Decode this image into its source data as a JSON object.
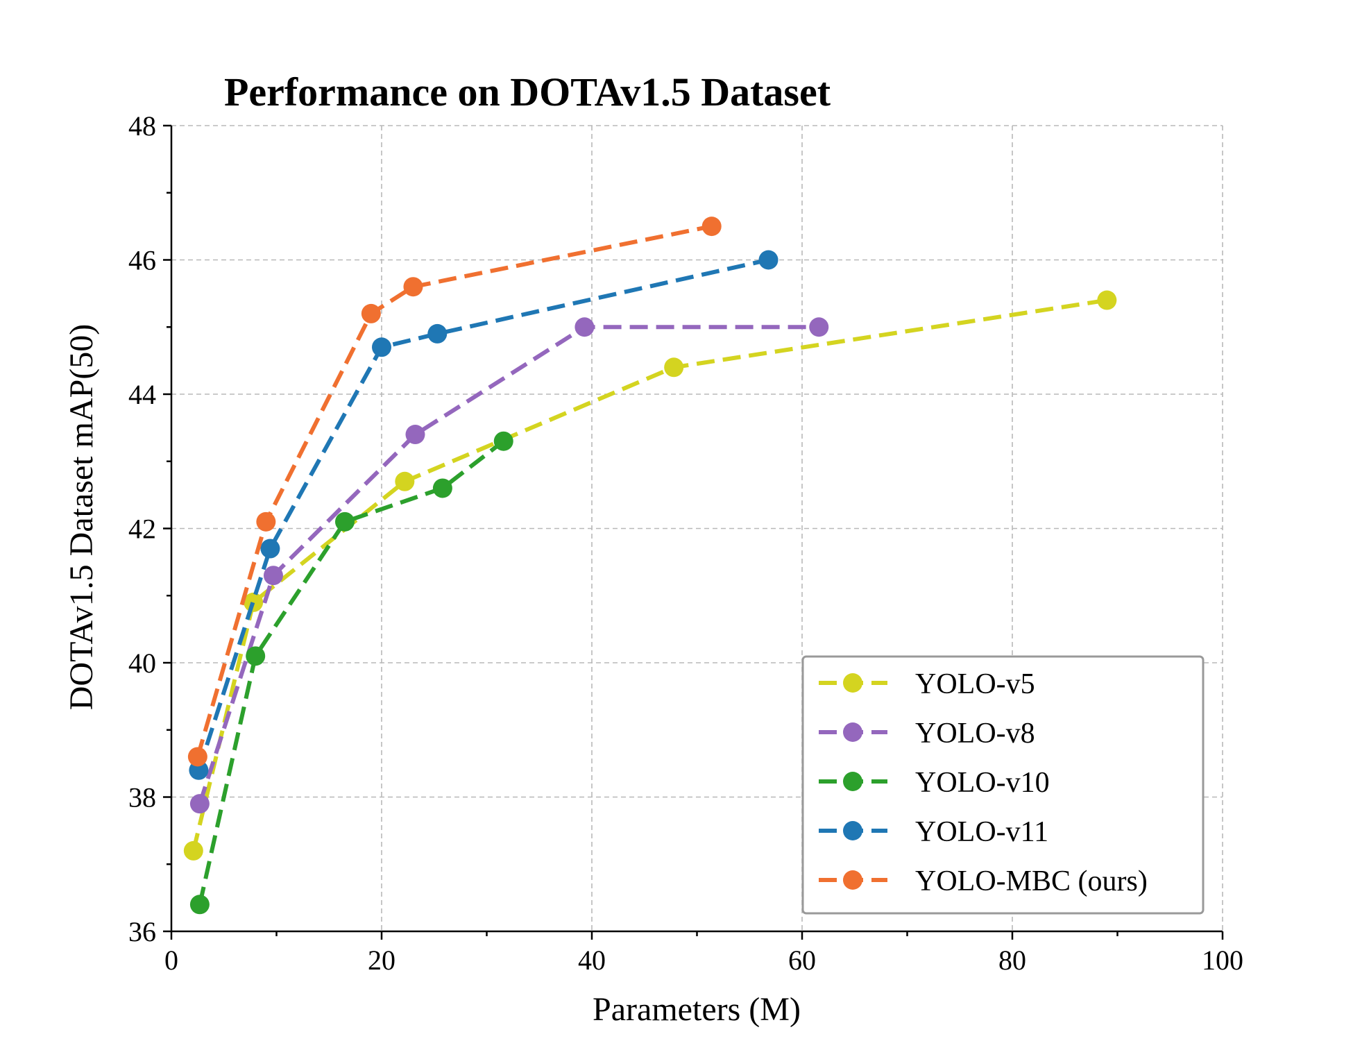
{
  "chart_data": {
    "type": "line",
    "title": "Performance on DOTAv1.5 Dataset",
    "xlabel": "Parameters (M)",
    "ylabel": "DOTAv1.5 Dataset mAP(50)",
    "xlim": [
      0,
      100
    ],
    "ylim": [
      36,
      48
    ],
    "xticks": [
      0,
      20,
      40,
      60,
      80,
      100
    ],
    "xtick_labels": [
      "0",
      "20",
      "40",
      "60",
      "80",
      "100"
    ],
    "yticks": [
      36,
      38,
      40,
      42,
      44,
      46,
      48
    ],
    "ytick_labels": [
      "36",
      "38",
      "40",
      "42",
      "44",
      "46",
      "48"
    ],
    "grid": true,
    "legend_position": "lower-right",
    "series": [
      {
        "name": "YOLO-v5",
        "color": "#d4d420",
        "x": [
          2.1,
          7.8,
          22.2,
          47.8,
          89.0
        ],
        "y": [
          37.2,
          40.9,
          42.7,
          44.4,
          45.4
        ]
      },
      {
        "name": "YOLO-v8",
        "color": "#9467bd",
        "x": [
          2.7,
          9.7,
          23.2,
          39.3,
          61.6
        ],
        "y": [
          37.9,
          41.3,
          43.4,
          45.0,
          45.0
        ]
      },
      {
        "name": "YOLO-v10",
        "color": "#2ca02c",
        "x": [
          2.7,
          8.0,
          16.5,
          25.8,
          31.6
        ],
        "y": [
          36.4,
          40.1,
          42.1,
          42.6,
          43.3
        ]
      },
      {
        "name": "YOLO-v11",
        "color": "#1f77b4",
        "x": [
          2.6,
          9.4,
          20.0,
          25.3,
          56.8
        ],
        "y": [
          38.4,
          41.7,
          44.7,
          44.9,
          46.0
        ]
      },
      {
        "name": "YOLO-MBC (ours)",
        "color": "#f07030",
        "x": [
          2.5,
          9.0,
          19.0,
          23.0,
          51.4
        ],
        "y": [
          38.6,
          42.1,
          45.2,
          45.6,
          46.5
        ]
      }
    ]
  }
}
